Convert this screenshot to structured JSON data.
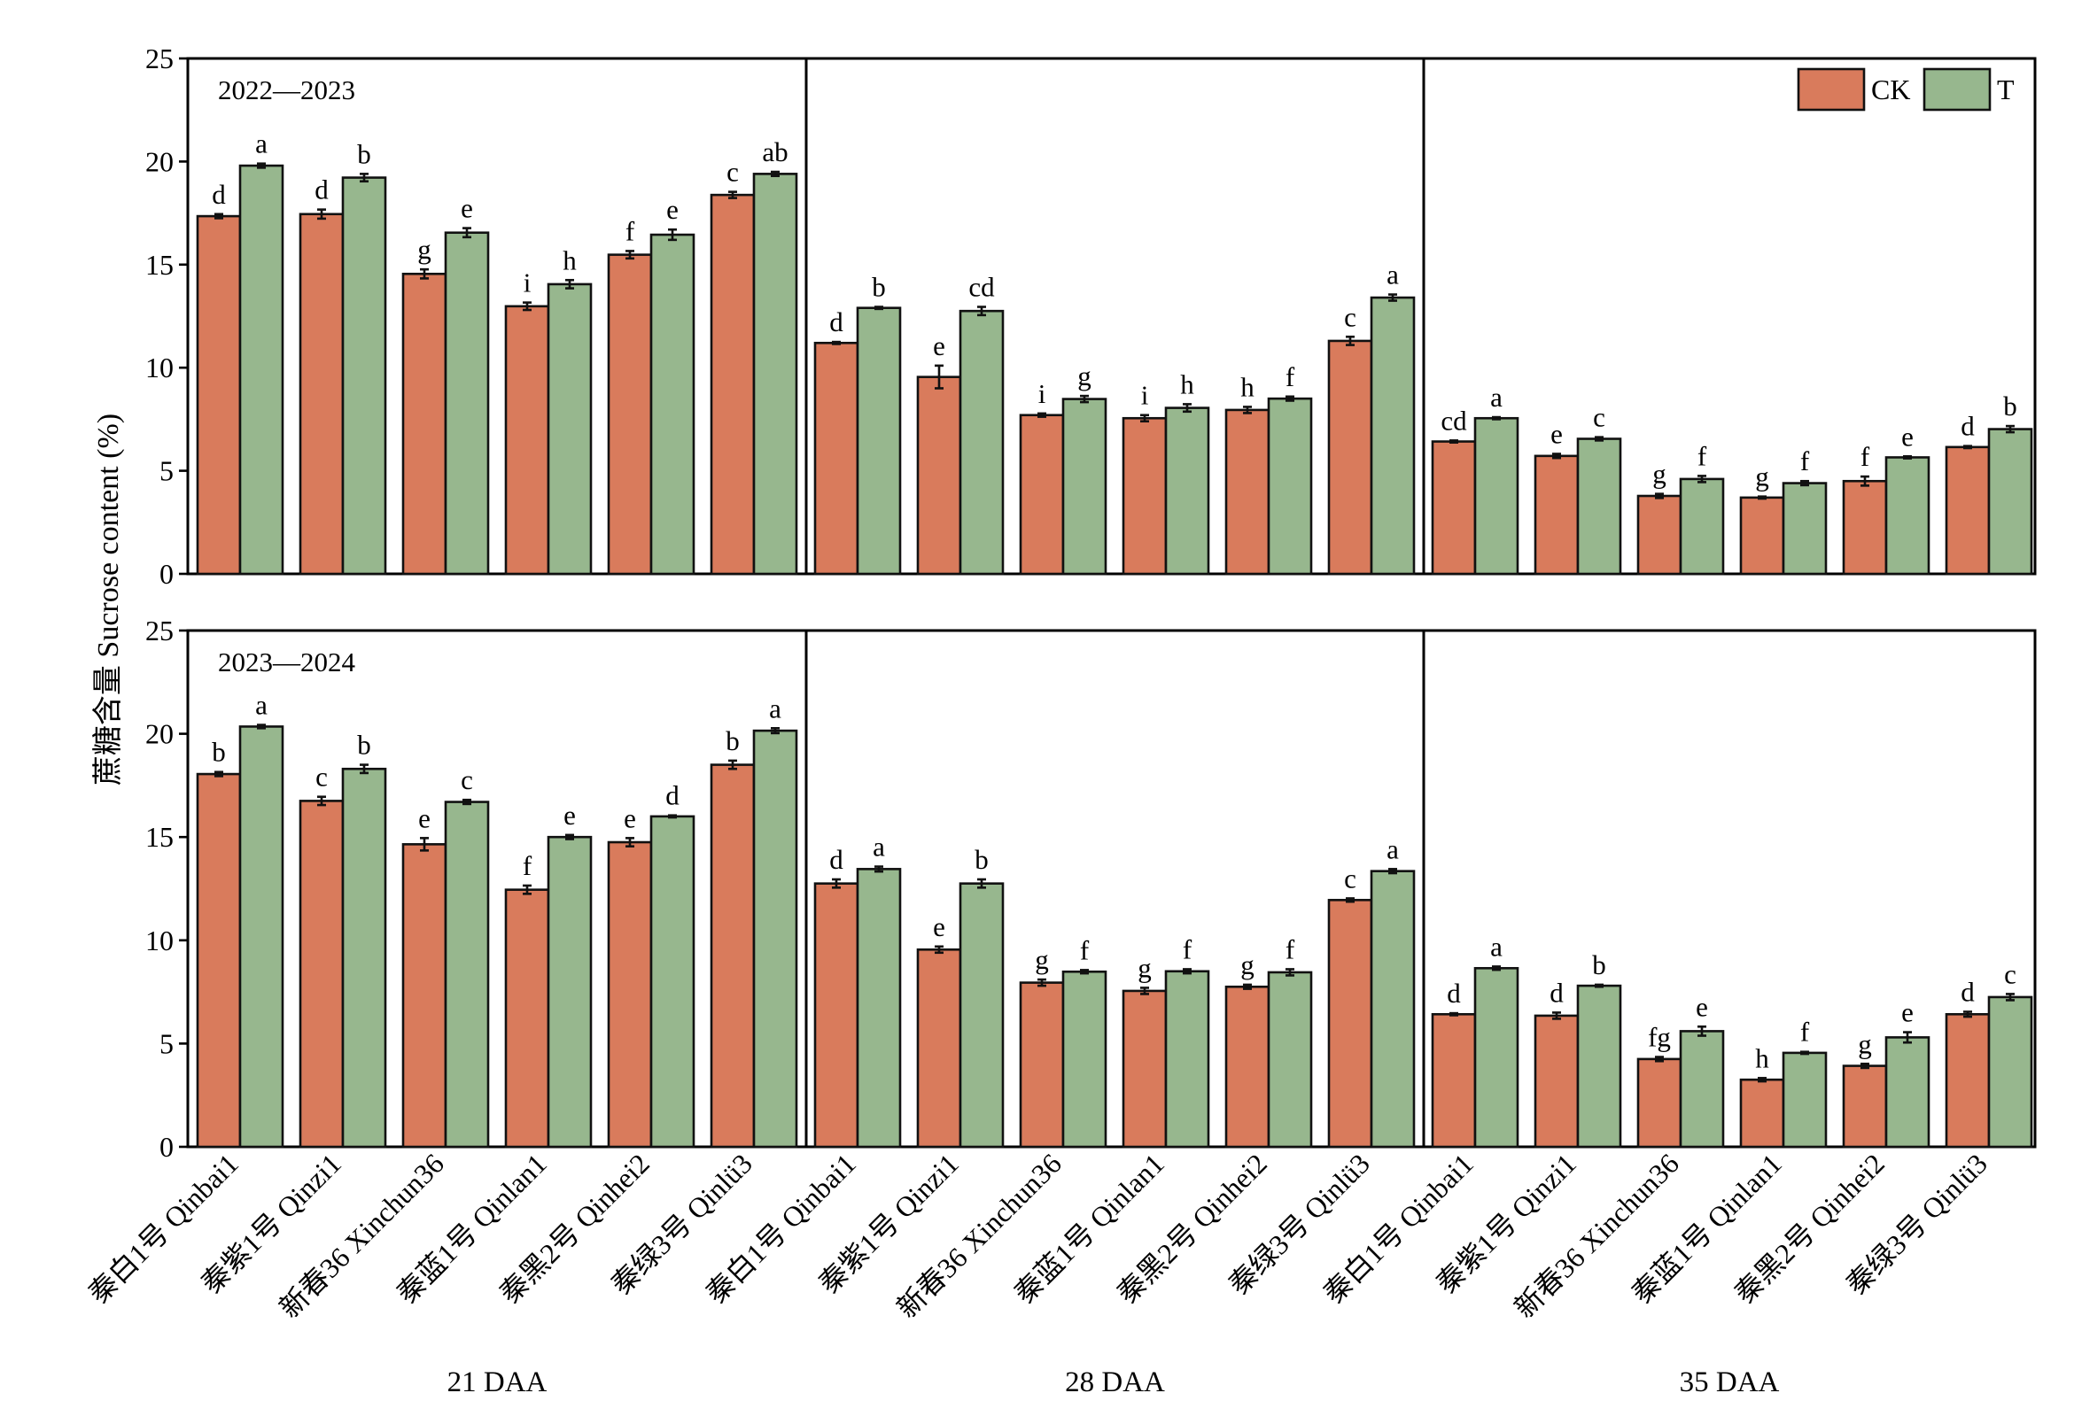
{
  "chart_data": {
    "type": "bar",
    "ylabel": "蔗糖含量 Sucrose content (%)",
    "ylim": [
      0,
      25
    ],
    "yticks": [
      0,
      5,
      10,
      15,
      20,
      25
    ],
    "legend": {
      "placement": "top-right",
      "entries": [
        {
          "name": "CK",
          "color": "#D97B5C"
        },
        {
          "name": "T",
          "color": "#97B78E"
        }
      ]
    },
    "stages": [
      "21 DAA",
      "28 DAA",
      "35 DAA"
    ],
    "cultivars": [
      "秦白1号 Qinbai1",
      "秦紫1号 Qinzi1",
      "新春36 Xinchun36",
      "秦蓝1号 Qinlan1",
      "秦黑2号 Qinhei2",
      "秦绿3号 Qinlü3"
    ],
    "panels": [
      {
        "year": "2022—2023",
        "stages": [
          {
            "stage": "21 DAA",
            "CK": [
              17.35,
              17.45,
              14.55,
              12.98,
              15.48,
              18.38
            ],
            "CK_err": [
              0.1,
              0.22,
              0.22,
              0.18,
              0.18,
              0.15
            ],
            "CK_sig": [
              "d",
              "d",
              "g",
              "i",
              "f",
              "c"
            ],
            "T": [
              19.8,
              19.22,
              16.55,
              14.05,
              16.45,
              19.4
            ],
            "T_err": [
              0.1,
              0.18,
              0.22,
              0.2,
              0.25,
              0.1
            ],
            "T_sig": [
              "a",
              "b",
              "e",
              "h",
              "e",
              "ab"
            ]
          },
          {
            "stage": "28 DAA",
            "CK": [
              11.2,
              9.55,
              7.7,
              7.55,
              7.95,
              11.3
            ],
            "CK_err": [
              0.05,
              0.55,
              0.08,
              0.15,
              0.15,
              0.2
            ],
            "CK_sig": [
              "d",
              "e",
              "i",
              "i",
              "h",
              "c"
            ],
            "T": [
              12.9,
              12.75,
              8.48,
              8.05,
              8.5,
              13.4
            ],
            "T_err": [
              0.05,
              0.2,
              0.15,
              0.18,
              0.1,
              0.15
            ],
            "T_sig": [
              "b",
              "cd",
              "g",
              "h",
              "f",
              "a"
            ]
          },
          {
            "stage": "35 DAA",
            "CK": [
              6.42,
              5.72,
              3.78,
              3.7,
              4.5,
              6.15
            ],
            "CK_err": [
              0.05,
              0.1,
              0.1,
              0.05,
              0.22,
              0.05
            ],
            "CK_sig": [
              "cd",
              "e",
              "g",
              "g",
              "f",
              "d"
            ],
            "T": [
              7.55,
              6.55,
              4.6,
              4.4,
              5.65,
              7.02
            ],
            "T_err": [
              0.05,
              0.08,
              0.15,
              0.1,
              0.05,
              0.15
            ],
            "T_sig": [
              "a",
              "c",
              "f",
              "f",
              "e",
              "b"
            ]
          }
        ]
      },
      {
        "year": "2023—2024",
        "stages": [
          {
            "stage": "21 DAA",
            "CK": [
              18.05,
              16.75,
              14.65,
              12.45,
              14.75,
              18.5
            ],
            "CK_err": [
              0.1,
              0.2,
              0.3,
              0.2,
              0.2,
              0.2
            ],
            "CK_sig": [
              "b",
              "c",
              "e",
              "f",
              "e",
              "b"
            ],
            "T": [
              20.35,
              18.3,
              16.7,
              15.0,
              16.0,
              20.15
            ],
            "T_err": [
              0.08,
              0.2,
              0.1,
              0.1,
              0.05,
              0.12
            ],
            "T_sig": [
              "a",
              "b",
              "c",
              "e",
              "d",
              "a"
            ]
          },
          {
            "stage": "28 DAA",
            "CK": [
              12.75,
              9.55,
              7.95,
              7.55,
              7.75,
              11.95
            ],
            "CK_err": [
              0.2,
              0.15,
              0.15,
              0.15,
              0.1,
              0.08
            ],
            "CK_sig": [
              "d",
              "e",
              "g",
              "g",
              "g",
              "c"
            ],
            "T": [
              13.45,
              12.75,
              8.48,
              8.5,
              8.45,
              13.35
            ],
            "T_err": [
              0.12,
              0.2,
              0.08,
              0.1,
              0.15,
              0.1
            ],
            "T_sig": [
              "a",
              "b",
              "f",
              "f",
              "f",
              "a"
            ]
          },
          {
            "stage": "35 DAA",
            "CK": [
              6.42,
              6.35,
              4.25,
              3.25,
              3.92,
              6.42
            ],
            "CK_err": [
              0.05,
              0.15,
              0.1,
              0.08,
              0.1,
              0.12
            ],
            "CK_sig": [
              "d",
              "d",
              "fg",
              "h",
              "g",
              "d"
            ],
            "T": [
              8.65,
              7.8,
              5.6,
              4.55,
              5.3,
              7.25
            ],
            "T_err": [
              0.08,
              0.05,
              0.22,
              0.05,
              0.25,
              0.15
            ],
            "T_sig": [
              "a",
              "b",
              "e",
              "f",
              "e",
              "c"
            ]
          }
        ]
      }
    ]
  }
}
